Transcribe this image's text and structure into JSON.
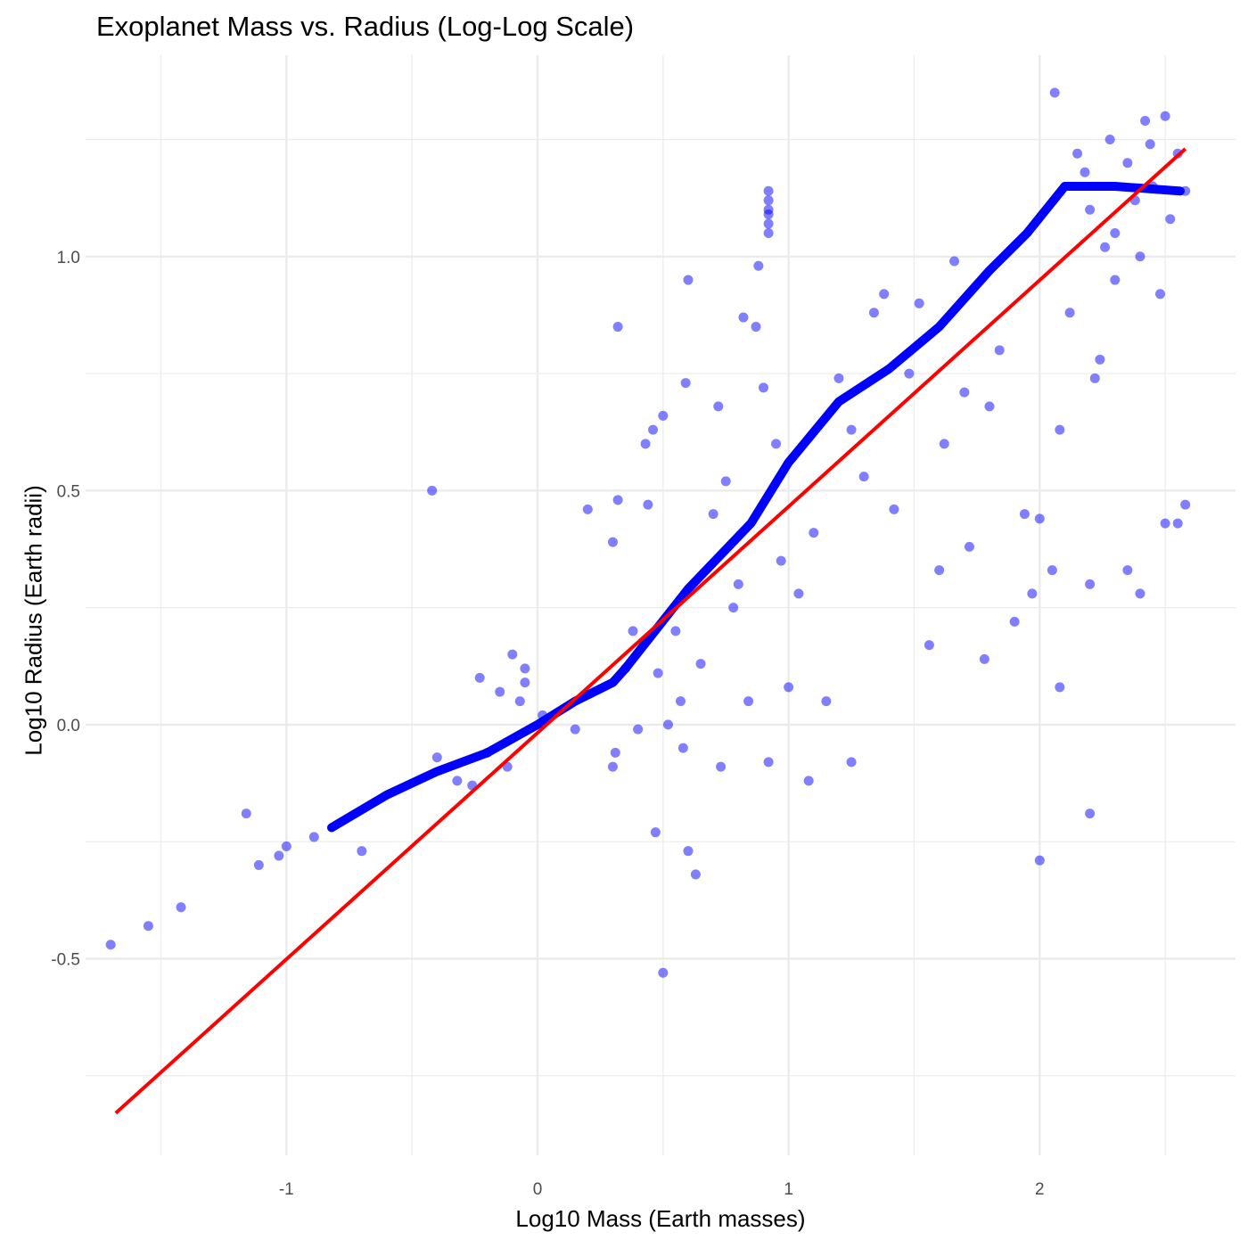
{
  "chart_data": {
    "type": "scatter",
    "title": "Exoplanet Mass vs. Radius (Log-Log Scale)",
    "xlabel": "Log10 Mass (Earth masses)",
    "ylabel": "Log10 Radius (Earth radii)",
    "xlim": [
      -1.8,
      2.78
    ],
    "ylim": [
      -0.92,
      1.43
    ],
    "x_ticks": [
      -1,
      0,
      1,
      2
    ],
    "x_tick_labels": [
      "-1",
      "0",
      "1",
      "2"
    ],
    "y_ticks": [
      -0.5,
      0.0,
      0.5,
      1.0
    ],
    "y_tick_labels": [
      "-0.5",
      "0.0",
      "0.5",
      "1.0"
    ],
    "grid": true,
    "legend": "none",
    "colors": {
      "points": "#0000ff",
      "trend": "#0000ff",
      "fit": "#ff0000",
      "grid": "#ebebeb"
    },
    "series": [
      {
        "type": "scatter",
        "points": [
          [
            -1.7,
            -0.47
          ],
          [
            -1.55,
            -0.43
          ],
          [
            -1.42,
            -0.39
          ],
          [
            -1.16,
            -0.19
          ],
          [
            -1.11,
            -0.3
          ],
          [
            -1.03,
            -0.28
          ],
          [
            -1.0,
            -0.26
          ],
          [
            -0.89,
            -0.24
          ],
          [
            -0.7,
            -0.27
          ],
          [
            -0.42,
            0.5
          ],
          [
            -0.4,
            -0.07
          ],
          [
            -0.32,
            -0.12
          ],
          [
            -0.26,
            -0.13
          ],
          [
            -0.23,
            0.1
          ],
          [
            -0.2,
            -0.06
          ],
          [
            -0.15,
            0.07
          ],
          [
            -0.12,
            -0.09
          ],
          [
            -0.1,
            0.15
          ],
          [
            -0.07,
            0.05
          ],
          [
            -0.05,
            0.09
          ],
          [
            -0.05,
            0.12
          ],
          [
            0.02,
            0.02
          ],
          [
            0.15,
            -0.01
          ],
          [
            0.2,
            0.46
          ],
          [
            0.3,
            0.39
          ],
          [
            0.32,
            0.48
          ],
          [
            0.32,
            0.85
          ],
          [
            0.3,
            -0.09
          ],
          [
            0.31,
            -0.06
          ],
          [
            0.35,
            0.12
          ],
          [
            0.38,
            0.2
          ],
          [
            0.4,
            -0.01
          ],
          [
            0.43,
            0.6
          ],
          [
            0.44,
            0.47
          ],
          [
            0.46,
            0.63
          ],
          [
            0.47,
            -0.23
          ],
          [
            0.48,
            0.11
          ],
          [
            0.5,
            0.66
          ],
          [
            0.5,
            -0.53
          ],
          [
            0.52,
            0.0
          ],
          [
            0.55,
            0.2
          ],
          [
            0.57,
            0.05
          ],
          [
            0.58,
            -0.05
          ],
          [
            0.59,
            0.73
          ],
          [
            0.6,
            0.95
          ],
          [
            0.6,
            -0.27
          ],
          [
            0.63,
            -0.32
          ],
          [
            0.65,
            0.13
          ],
          [
            0.7,
            0.45
          ],
          [
            0.72,
            0.68
          ],
          [
            0.73,
            -0.09
          ],
          [
            0.75,
            0.52
          ],
          [
            0.78,
            0.25
          ],
          [
            0.8,
            0.3
          ],
          [
            0.82,
            0.87
          ],
          [
            0.84,
            0.05
          ],
          [
            0.87,
            0.85
          ],
          [
            0.88,
            0.98
          ],
          [
            0.9,
            0.72
          ],
          [
            0.92,
            1.05
          ],
          [
            0.92,
            1.07
          ],
          [
            0.92,
            1.09
          ],
          [
            0.92,
            1.1
          ],
          [
            0.92,
            1.12
          ],
          [
            0.92,
            1.14
          ],
          [
            0.92,
            -0.08
          ],
          [
            0.95,
            0.6
          ],
          [
            0.97,
            0.35
          ],
          [
            1.0,
            0.08
          ],
          [
            1.04,
            0.28
          ],
          [
            1.08,
            -0.12
          ],
          [
            1.1,
            0.41
          ],
          [
            1.15,
            0.05
          ],
          [
            1.2,
            0.74
          ],
          [
            1.25,
            0.63
          ],
          [
            1.25,
            -0.08
          ],
          [
            1.3,
            0.53
          ],
          [
            1.34,
            0.88
          ],
          [
            1.38,
            0.92
          ],
          [
            1.42,
            0.46
          ],
          [
            1.48,
            0.75
          ],
          [
            1.52,
            0.9
          ],
          [
            1.56,
            0.17
          ],
          [
            1.6,
            0.33
          ],
          [
            1.62,
            0.6
          ],
          [
            1.66,
            0.99
          ],
          [
            1.7,
            0.71
          ],
          [
            1.72,
            0.38
          ],
          [
            1.78,
            0.14
          ],
          [
            1.8,
            0.68
          ],
          [
            1.84,
            0.8
          ],
          [
            1.9,
            0.22
          ],
          [
            1.94,
            0.45
          ],
          [
            1.97,
            0.28
          ],
          [
            2.0,
            -0.29
          ],
          [
            2.0,
            0.44
          ],
          [
            2.05,
            0.33
          ],
          [
            2.08,
            0.08
          ],
          [
            2.08,
            0.63
          ],
          [
            2.12,
            0.88
          ],
          [
            2.18,
            1.18
          ],
          [
            2.2,
            0.3
          ],
          [
            2.2,
            -0.19
          ],
          [
            2.22,
            0.74
          ],
          [
            2.24,
            0.78
          ],
          [
            2.3,
            1.05
          ],
          [
            2.35,
            0.33
          ],
          [
            2.4,
            0.28
          ],
          [
            2.42,
            1.29
          ],
          [
            2.48,
            0.92
          ],
          [
            2.5,
            0.43
          ],
          [
            2.55,
            0.43
          ],
          [
            2.58,
            0.47
          ],
          [
            2.06,
            1.35
          ],
          [
            2.28,
            1.25
          ],
          [
            2.35,
            1.2
          ],
          [
            2.45,
            1.15
          ],
          [
            2.52,
            1.08
          ],
          [
            2.4,
            1.0
          ],
          [
            2.3,
            0.95
          ],
          [
            2.2,
            1.1
          ],
          [
            2.15,
            1.22
          ],
          [
            2.55,
            1.22
          ],
          [
            2.58,
            1.14
          ],
          [
            2.5,
            1.3
          ],
          [
            2.38,
            1.12
          ],
          [
            2.44,
            1.24
          ],
          [
            2.26,
            1.02
          ]
        ]
      },
      {
        "type": "line",
        "points": [
          [
            -0.82,
            -0.22
          ],
          [
            -0.6,
            -0.15
          ],
          [
            -0.4,
            -0.1
          ],
          [
            -0.2,
            -0.06
          ],
          [
            0.0,
            0.0
          ],
          [
            0.15,
            0.05
          ],
          [
            0.3,
            0.09
          ],
          [
            0.35,
            0.12
          ],
          [
            0.6,
            0.29
          ],
          [
            0.85,
            0.43
          ],
          [
            1.0,
            0.56
          ],
          [
            1.2,
            0.69
          ],
          [
            1.4,
            0.76
          ],
          [
            1.6,
            0.85
          ],
          [
            1.8,
            0.97
          ],
          [
            1.95,
            1.05
          ],
          [
            2.1,
            1.15
          ],
          [
            2.3,
            1.15
          ],
          [
            2.56,
            1.14
          ]
        ]
      },
      {
        "type": "line",
        "points": [
          [
            -1.68,
            -0.83
          ],
          [
            2.58,
            1.23
          ]
        ]
      }
    ]
  }
}
